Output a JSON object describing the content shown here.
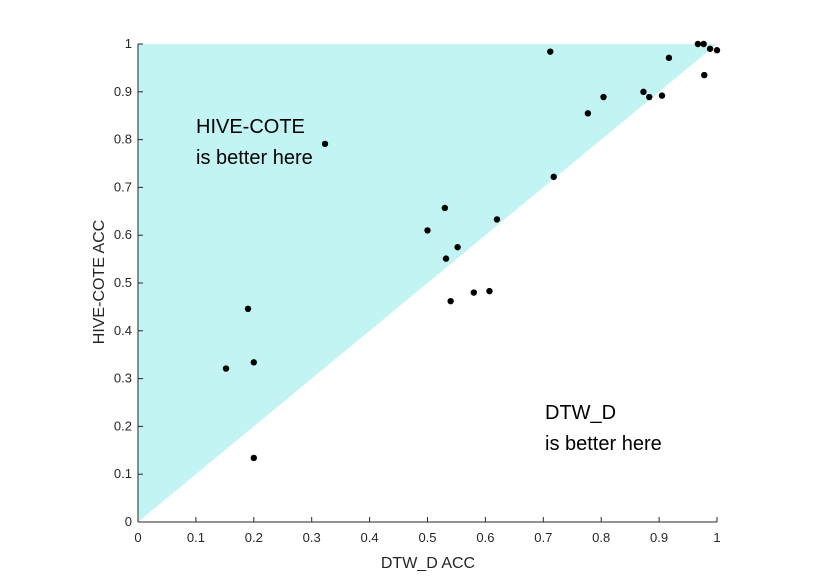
{
  "chart_data": {
    "type": "scatter",
    "title": "",
    "xlabel": "DTW_D ACC",
    "ylabel": "HIVE-COTE ACC",
    "xlim": [
      0,
      1
    ],
    "ylim": [
      0,
      1
    ],
    "xticks": [
      "0",
      "0.1",
      "0.2",
      "0.3",
      "0.4",
      "0.5",
      "0.6",
      "0.7",
      "0.8",
      "0.9",
      "1"
    ],
    "yticks": [
      "0",
      "0.1",
      "0.2",
      "0.3",
      "0.4",
      "0.5",
      "0.6",
      "0.7",
      "0.8",
      "0.9",
      "1"
    ],
    "grid": false,
    "region_color": "#c2f4f4",
    "point_color": "#000000",
    "annotations": {
      "upper_line1": "HIVE-COTE",
      "upper_line2": "is better here",
      "lower_line1": "DTW_D",
      "lower_line2": "is better here"
    },
    "points": [
      {
        "x": 0.152,
        "y": 0.321
      },
      {
        "x": 0.19,
        "y": 0.446
      },
      {
        "x": 0.2,
        "y": 0.334
      },
      {
        "x": 0.2,
        "y": 0.134
      },
      {
        "x": 0.323,
        "y": 0.791
      },
      {
        "x": 0.5,
        "y": 0.61
      },
      {
        "x": 0.53,
        "y": 0.657
      },
      {
        "x": 0.532,
        "y": 0.551
      },
      {
        "x": 0.552,
        "y": 0.575
      },
      {
        "x": 0.54,
        "y": 0.462
      },
      {
        "x": 0.58,
        "y": 0.48
      },
      {
        "x": 0.607,
        "y": 0.483
      },
      {
        "x": 0.62,
        "y": 0.633
      },
      {
        "x": 0.712,
        "y": 0.984
      },
      {
        "x": 0.718,
        "y": 0.722
      },
      {
        "x": 0.777,
        "y": 0.855
      },
      {
        "x": 0.804,
        "y": 0.889
      },
      {
        "x": 0.873,
        "y": 0.9
      },
      {
        "x": 0.883,
        "y": 0.889
      },
      {
        "x": 0.905,
        "y": 0.892
      },
      {
        "x": 0.917,
        "y": 0.971
      },
      {
        "x": 0.967,
        "y": 1.0
      },
      {
        "x": 0.977,
        "y": 1.0
      },
      {
        "x": 0.978,
        "y": 0.935
      },
      {
        "x": 0.988,
        "y": 0.99
      },
      {
        "x": 1.0,
        "y": 0.987
      }
    ]
  }
}
